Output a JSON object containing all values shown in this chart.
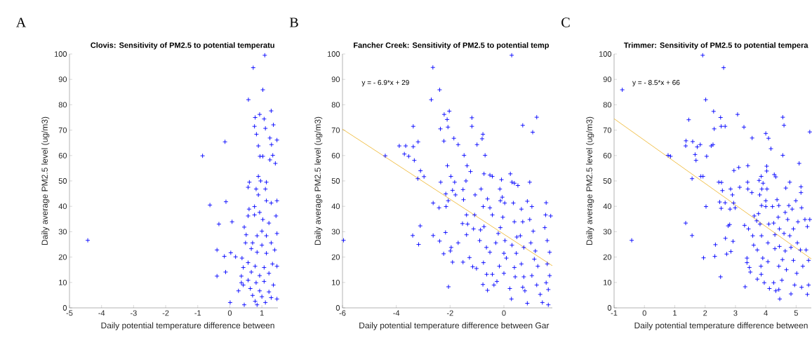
{
  "chart_data": [
    {
      "type": "scatter",
      "title": "Clovis: Sensitivity of PM2.5 to potential temperatu",
      "xlabel": "Daily potential temperature difference between",
      "ylabel": "Daily average PM2.5 level (ug/m3)",
      "annotations": [
        "A"
      ],
      "xlim": [
        -5,
        1.5
      ],
      "ylim": [
        0,
        100
      ],
      "xticks": [
        -5,
        -4,
        -3,
        -2,
        -1,
        0,
        1
      ],
      "yticks": [
        0,
        10,
        20,
        30,
        40,
        50,
        60,
        70,
        80,
        90,
        100
      ],
      "series": [
        {
          "marker": "cross",
          "color": "#0000ff",
          "x": [
            -4.43,
            -0.85,
            -0.62,
            -0.15,
            -0.12,
            -0.34,
            -0.4,
            -0.17,
            -0.4,
            -0.13,
            0.07,
            0.01,
            0.03,
            0.18,
            0.38,
            0.36,
            0.36,
            0.45,
            0.51,
            0.49,
            0.58,
            0.73,
            1.09,
            1.03,
            0.79,
            0.93,
            0.77,
            0.83,
            0.89,
            0.94,
            1.03,
            1.07,
            1.29,
            1.36,
            1.11,
            1.25,
            1.3,
            1.34,
            1.25,
            1.42,
            0.61,
            0.57,
            0.89,
            0.96,
            1.14,
            0.82,
            1.11,
            0.89,
            1.14,
            1.29,
            0.77,
            0.6,
            0.93,
            0.57,
            0.77,
            1.03,
            1.22,
            1.44,
            1.0,
            0.85,
            1.14,
            0.71,
            1.0,
            1.29,
            0.67,
            0.85,
            1.14,
            1.4,
            0.57,
            0.79,
            1.07,
            1.33,
            0.67,
            0.93,
            1.22,
            0.57,
            0.82,
            1.07,
            1.36,
            0.64,
            0.93,
            1.22,
            0.71,
            1.0,
            1.29,
            0.79,
            1.11,
            0.45,
            0.85,
            1.47,
            1.47,
            1.47,
            1.47,
            1.47,
            0.27,
            0.42,
            0.42
          ],
          "values": [
            26.6,
            59.9,
            40.5,
            65.4,
            41.8,
            33.0,
            22.8,
            20.3,
            12.5,
            14.1,
            33.9,
            2.1,
            21.7,
            20.1,
            19.6,
            12.5,
            9.9,
            31.8,
            28.8,
            25.6,
            82.0,
            94.6,
            99.5,
            85.9,
            75.0,
            76.2,
            71.5,
            68.4,
            63.8,
            59.7,
            59.7,
            74.4,
            77.6,
            72.1,
            70.7,
            66.9,
            64.3,
            60.1,
            58.3,
            56.9,
            49.5,
            47.5,
            51.8,
            50.0,
            49.5,
            46.8,
            46.8,
            44.5,
            42.2,
            41.3,
            39.9,
            38.9,
            37.6,
            36.2,
            36.6,
            34.8,
            33.4,
            36.2,
            30.2,
            28.4,
            28.4,
            25.6,
            24.7,
            25.6,
            23.3,
            21.9,
            21.5,
            22.8,
            17.8,
            16.4,
            15.9,
            17.3,
            14.1,
            12.7,
            13.6,
            10.9,
            9.9,
            10.4,
            9.0,
            7.6,
            6.7,
            6.3,
            4.9,
            4.4,
            4.0,
            2.6,
            2.1,
            1.2,
            1.2,
            3.5,
            16.4,
            29.3,
            42.2,
            66.1,
            6.7,
            9.0,
            15.9
          ]
        }
      ]
    },
    {
      "type": "scatter",
      "title": "Fancher Creek: Sensitivity of PM2.5 to potential temp",
      "xlabel": "Daily potential temperature difference between Gar",
      "ylabel": "Daily average PM2.5 level (ug/m3)",
      "annotations": [
        "B",
        "y = - 6.9*x + 29"
      ],
      "xlim": [
        -6,
        1.8
      ],
      "ylim": [
        0,
        100
      ],
      "xticks": [
        -6,
        -4,
        -2,
        0
      ],
      "yticks": [
        0,
        10,
        20,
        30,
        40,
        50,
        60,
        70,
        80,
        90,
        100
      ],
      "series": [
        {
          "marker": "cross",
          "color": "#0000ff",
          "x": [
            -5.96,
            -4.41,
            -3.89,
            -3.65,
            -3.37,
            -3.37,
            -3.19,
            -3.7,
            -3.54,
            -3.33,
            -3.1,
            -2.97,
            -3.2,
            -3.39,
            -3.11,
            -3.17,
            -2.64,
            -2.39,
            -2.7,
            -2.22,
            -2.03,
            -2.11,
            -2.36,
            -2.08,
            -2.23,
            -1.86,
            -1.7,
            -2.1,
            -1.97,
            -2.35,
            -2.63,
            -2.41,
            -2.15,
            -2.16,
            -1.83,
            -1.91,
            -1.8,
            -2.07,
            -2.63,
            -2.39,
            -2.24,
            -2.17,
            -2.06,
            -1.91,
            -1.96,
            -1.99,
            -1.7,
            -1.52,
            -1.48,
            -1.19,
            -1.19,
            -1.37,
            -1.24,
            -1.41,
            -1.52,
            -1.5,
            -1.39,
            -1.35,
            -1.54,
            -1.39,
            -1.28,
            -1.16,
            -1.02,
            -1.0,
            -0.78,
            -0.81,
            -0.7,
            -1.07,
            -0.85,
            -0.74,
            -0.52,
            -0.43,
            -1.09,
            -1.13,
            -0.87,
            -0.74,
            -0.9,
            -0.77,
            -0.61,
            -0.52,
            -0.43,
            -0.65,
            -0.52,
            -0.76,
            -0.64,
            -0.78,
            -0.61,
            -0.43,
            -0.37,
            -0.26,
            -0.17,
            -0.13,
            -0.09,
            -0.15,
            -0.06,
            0.03,
            -0.04,
            -0.13,
            -0.21,
            -0.3,
            0.04,
            0.0,
            0.09,
            0.0,
            0.24,
            0.3,
            0.39,
            0.52,
            0.28,
            0.29,
            0.22,
            0.35,
            0.39,
            0.48,
            0.3,
            0.46,
            0.39,
            0.42,
            0.7,
            0.65,
            0.7,
            0.61,
            0.74,
            0.65,
            0.74,
            0.7,
            0.78,
            0.87,
            0.87,
            0.96,
            1.04,
            1.07,
            1.22,
            0.96,
            1.09,
            1.0,
            1.17,
            1.13,
            1.26,
            1.04,
            1.22,
            1.35,
            1.43,
            1.57,
            1.55,
            1.52,
            1.61,
            1.7,
            1.61,
            1.7,
            1.65,
            1.74,
            1.57,
            1.65
          ],
          "values": [
            26.6,
            59.9,
            63.8,
            63.8,
            63.5,
            71.5,
            65.4,
            60.6,
            59.7,
            58.1,
            54.0,
            51.7,
            50.9,
            28.5,
            32.3,
            25.0,
            94.7,
            85.9,
            82.0,
            76.2,
            77.5,
            74.2,
            70.5,
            71.2,
            65.7,
            66.8,
            64.3,
            56.0,
            51.8,
            49.5,
            41.3,
            39.4,
            39.9,
            44.9,
            49.5,
            46.3,
            44.5,
            42.2,
            28.5,
            26.3,
            21.3,
            29.7,
            8.3,
            18.0,
            23.8,
            22.4,
            25.6,
            18.0,
            60.1,
            74.9,
            71.5,
            56.0,
            53.7,
            50.0,
            46.6,
            42.6,
            36.6,
            33.0,
            33.2,
            28.8,
            19.8,
            16.2,
            15.5,
            64.3,
            68.4,
            66.6,
            60.1,
            44.5,
            46.8,
            52.8,
            52.3,
            51.8,
            36.6,
            31.1,
            30.7,
            32.0,
            26.5,
            39.9,
            42.9,
            39.4,
            36.6,
            23.8,
            21.9,
            17.8,
            13.2,
            9.2,
            6.9,
            13.2,
            9.0,
            10.4,
            16.4,
            42.2,
            50.5,
            46.8,
            43.6,
            41.3,
            35.7,
            31.6,
            29.3,
            25.6,
            26.5,
            21.5,
            19.6,
            13.6,
            52.8,
            49.5,
            49.1,
            48.2,
            3.5,
            99.5,
            7.6,
            41.3,
            33.9,
            27.9,
            24.7,
            21.5,
            15.9,
            12.2,
            71.9,
            38.9,
            33.9,
            28.4,
            23.8,
            17.3,
            12.2,
            8.1,
            6.7,
            1.8,
            42.0,
            49.5,
            39.9,
            69.2,
            75.1,
            34.8,
            30.2,
            25.6,
            22.4,
            19.2,
            16.4,
            12.7,
            9.0,
            5.3,
            2.1,
            41.4,
            36.6,
            31.6,
            26.5,
            21.9,
            17.3,
            12.7,
            7.2,
            36.2,
            9.9,
            1.2
          ]
        },
        {
          "type": "line",
          "color": "#edb120",
          "x": [
            -6,
            1.8
          ],
          "values": [
            70.4,
            16.6
          ]
        }
      ]
    },
    {
      "type": "scatter",
      "title": "Trimmer: Sensitivity of PM2.5 to potential tempera",
      "xlabel": "Daily potential temperature difference between",
      "ylabel": "Daily average PM2.5 level (ug/m3)",
      "annotations": [
        "C",
        "y = - 8.5*x + 66"
      ],
      "xlim": [
        -1,
        5.5
      ],
      "ylim": [
        0,
        100
      ],
      "xticks": [
        -1,
        0,
        1,
        2,
        3,
        4,
        5
      ],
      "yticks": [
        0,
        10,
        20,
        30,
        40,
        50,
        60,
        70,
        80,
        90,
        100
      ],
      "series": [
        {
          "marker": "cross",
          "color": "#0000ff",
          "x": [
            -0.73,
            -0.42,
            0.78,
            0.86,
            1.36,
            1.37,
            1.46,
            1.36,
            1.57,
            1.57,
            1.59,
            1.67,
            1.7,
            1.74,
            1.84,
            1.86,
            1.93,
            1.92,
            2.02,
            2.05,
            2.03,
            1.95,
            2.2,
            2.26,
            2.28,
            2.3,
            2.34,
            2.32,
            2.51,
            2.53,
            2.66,
            2.61,
            2.45,
            2.54,
            2.57,
            2.48,
            2.53,
            2.66,
            2.67,
            2.71,
            2.51,
            2.76,
            2.81,
            2.84,
            2.82,
            2.9,
            2.94,
            2.92,
            2.85,
            2.99,
            2.95,
            3.11,
            3.07,
            3.14,
            3.28,
            3.3,
            3.32,
            3.38,
            3.38,
            3.4,
            3.41,
            3.41,
            3.43,
            3.46,
            3.49,
            3.55,
            3.54,
            3.57,
            3.6,
            3.62,
            3.7,
            3.76,
            3.72,
            3.72,
            3.78,
            3.8,
            3.81,
            3.85,
            3.87,
            3.86,
            3.86,
            3.84,
            3.85,
            3.91,
            3.9,
            3.95,
            4.0,
            4.03,
            4.03,
            4.04,
            4.0,
            4.0,
            4.09,
            4.17,
            4.1,
            4.07,
            4.07,
            4.12,
            4.22,
            4.28,
            4.33,
            4.26,
            4.3,
            4.3,
            4.26,
            4.33,
            4.37,
            4.43,
            4.41,
            4.45,
            4.45,
            4.43,
            4.43,
            4.46,
            4.53,
            4.55,
            4.56,
            4.56,
            4.6,
            4.64,
            4.66,
            4.6,
            4.64,
            4.68,
            4.72,
            4.76,
            4.79,
            4.79,
            4.83,
            4.83,
            4.87,
            4.91,
            4.91,
            4.95,
            4.99,
            5.06,
            5.04,
            5.02,
            5.1,
            5.16,
            5.16,
            5.14,
            5.18,
            5.18,
            5.22,
            5.29,
            5.37,
            5.33,
            5.41,
            5.37,
            5.41,
            5.45,
            5.45
          ],
          "values": [
            85.9,
            26.6,
            60.1,
            59.7,
            63.8,
            65.8,
            74.1,
            33.4,
            28.5,
            50.9,
            65.5,
            60.4,
            58.1,
            63.4,
            64.3,
            51.8,
            51.8,
            99.5,
            82.0,
            59.7,
            39.9,
            19.7,
            63.8,
            64.3,
            77.4,
            70.5,
            24.9,
            20.3,
            75.0,
            71.5,
            71.5,
            94.6,
            49.5,
            49.4,
            46.2,
            41.7,
            39.2,
            41.4,
            27.4,
            21.2,
            12.2,
            32.3,
            32.8,
            46.8,
            38.9,
            44.5,
            41.3,
            26.2,
            22.2,
            39.4,
            54.1,
            55.3,
            76.2,
            47.5,
            71.2,
            32.5,
            8.3,
            19.6,
            17.8,
            49.5,
            46.8,
            56.0,
            31.1,
            15.9,
            14.1,
            66.9,
            45.4,
            28.4,
            24.7,
            36.2,
            34.3,
            37.1,
            22.8,
            11.3,
            50.2,
            44.5,
            33.0,
            51.8,
            46.8,
            40.3,
            28.4,
            16.4,
            13.2,
            49.1,
            19.6,
            9.9,
            68.7,
            55.8,
            53.9,
            46.8,
            42.2,
            39.9,
            66.8,
            62.7,
            33.0,
            25.6,
            18.2,
            7.6,
            39.9,
            52.5,
            51.6,
            33.4,
            28.8,
            23.3,
            9.9,
            6.7,
            42.6,
            40.3,
            35.7,
            31.1,
            24.2,
            16.4,
            7.2,
            3.5,
            10.9,
            19.0,
            60.1,
            75.1,
            71.9,
            37.6,
            47.2,
            29.3,
            22.4,
            15.0,
            34.8,
            40.3,
            49.5,
            28.4,
            23.8,
            5.5,
            38.9,
            31.1,
            18.7,
            9.0,
            42.2,
            33.9,
            25.6,
            13.6,
            56.9,
            47.7,
            45.4,
            22.8,
            39.4,
            8.1,
            16.4,
            34.8,
            32.0,
            22.8,
            18.7,
            5.3,
            9.0,
            69.3,
            34.8
          ]
        },
        {
          "type": "line",
          "color": "#edb120",
          "x": [
            -1,
            5.5
          ],
          "values": [
            74.5,
            19.3
          ]
        }
      ]
    }
  ]
}
